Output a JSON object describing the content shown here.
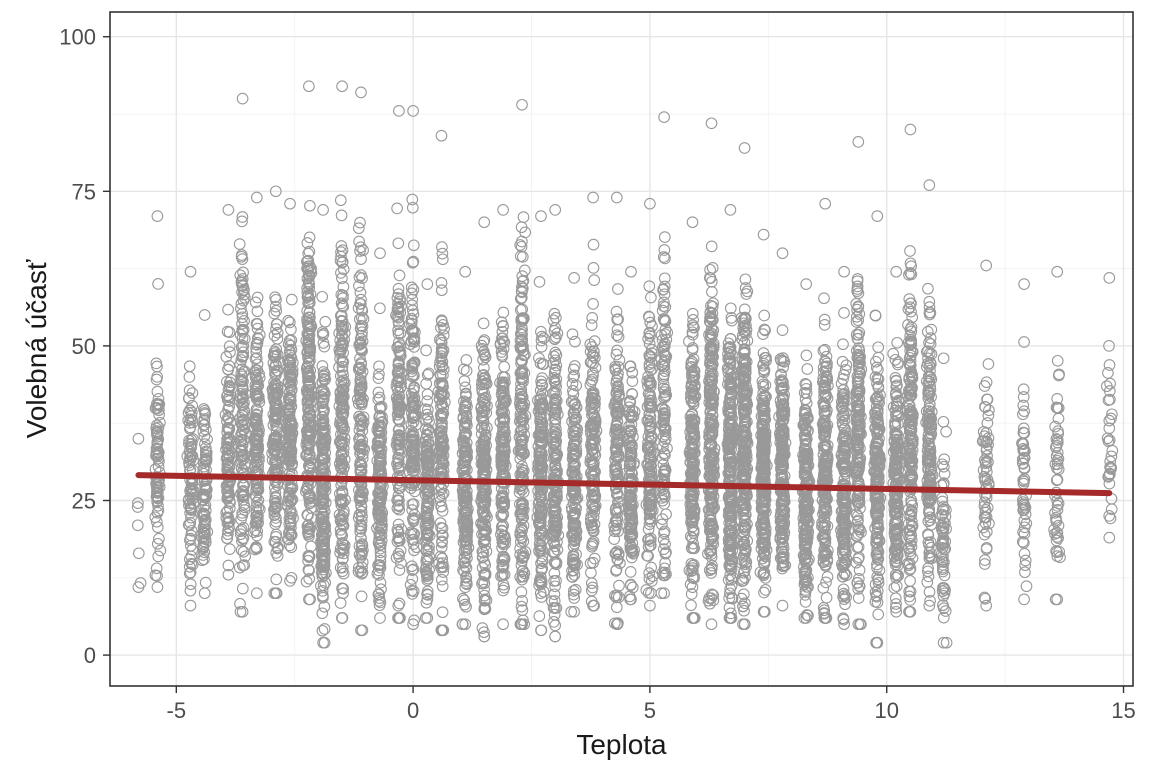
{
  "chart_data": {
    "type": "scatter",
    "title": "",
    "xlabel": "Teplota",
    "ylabel": "Volebná účasť",
    "xlim": [
      -6.4,
      15.2
    ],
    "ylim": [
      -5,
      104
    ],
    "x_ticks": [
      -5,
      0,
      5,
      10,
      15
    ],
    "y_ticks": [
      0,
      25,
      50,
      75,
      100
    ],
    "x_tick_labels": [
      "-5",
      "0",
      "5",
      "10",
      "15"
    ],
    "y_tick_labels": [
      "0",
      "25",
      "50",
      "75",
      "100"
    ],
    "grid": true,
    "legend": "none",
    "point_color": "#999999",
    "line_color": "#a52a2a",
    "regression_line": {
      "x": [
        -5.8,
        14.7
      ],
      "y": [
        29.1,
        26.2
      ]
    },
    "point_clusters": [
      {
        "x": -5.8,
        "y_min": 11,
        "y_max": 35,
        "n": 5
      },
      {
        "x": -5.4,
        "y_min": 11,
        "y_max": 71,
        "n": 80
      },
      {
        "x": -4.7,
        "y_min": 8,
        "y_max": 62,
        "n": 90
      },
      {
        "x": -4.4,
        "y_min": 10,
        "y_max": 55,
        "n": 90
      },
      {
        "x": -3.9,
        "y_min": 13,
        "y_max": 72,
        "n": 110
      },
      {
        "x": -3.6,
        "y_min": 7,
        "y_max": 90,
        "n": 150
      },
      {
        "x": -3.3,
        "y_min": 10,
        "y_max": 74,
        "n": 150
      },
      {
        "x": -2.9,
        "y_min": 10,
        "y_max": 75,
        "n": 170
      },
      {
        "x": -2.6,
        "y_min": 12,
        "y_max": 73,
        "n": 180
      },
      {
        "x": -2.2,
        "y_min": 9,
        "y_max": 92,
        "n": 220
      },
      {
        "x": -1.9,
        "y_min": 2,
        "y_max": 72,
        "n": 220
      },
      {
        "x": -1.5,
        "y_min": 6,
        "y_max": 92,
        "n": 190
      },
      {
        "x": -1.1,
        "y_min": 4,
        "y_max": 91,
        "n": 170
      },
      {
        "x": -0.7,
        "y_min": 6,
        "y_max": 65,
        "n": 150
      },
      {
        "x": -0.3,
        "y_min": 6,
        "y_max": 88,
        "n": 150
      },
      {
        "x": 0.0,
        "y_min": 5,
        "y_max": 88,
        "n": 150
      },
      {
        "x": 0.3,
        "y_min": 6,
        "y_max": 60,
        "n": 140
      },
      {
        "x": 0.6,
        "y_min": 4,
        "y_max": 84,
        "n": 150
      },
      {
        "x": 1.1,
        "y_min": 5,
        "y_max": 62,
        "n": 170
      },
      {
        "x": 1.5,
        "y_min": 3,
        "y_max": 70,
        "n": 190
      },
      {
        "x": 1.9,
        "y_min": 5,
        "y_max": 72,
        "n": 190
      },
      {
        "x": 2.3,
        "y_min": 5,
        "y_max": 89,
        "n": 190
      },
      {
        "x": 2.7,
        "y_min": 4,
        "y_max": 71,
        "n": 180
      },
      {
        "x": 3.0,
        "y_min": 3,
        "y_max": 72,
        "n": 170
      },
      {
        "x": 3.4,
        "y_min": 7,
        "y_max": 61,
        "n": 160
      },
      {
        "x": 3.8,
        "y_min": 8,
        "y_max": 74,
        "n": 150
      },
      {
        "x": 4.3,
        "y_min": 5,
        "y_max": 74,
        "n": 140
      },
      {
        "x": 4.6,
        "y_min": 9,
        "y_max": 62,
        "n": 140
      },
      {
        "x": 5.0,
        "y_min": 8,
        "y_max": 73,
        "n": 150
      },
      {
        "x": 5.3,
        "y_min": 10,
        "y_max": 87,
        "n": 120
      },
      {
        "x": 5.9,
        "y_min": 6,
        "y_max": 70,
        "n": 200
      },
      {
        "x": 6.3,
        "y_min": 5,
        "y_max": 86,
        "n": 250
      },
      {
        "x": 6.7,
        "y_min": 6,
        "y_max": 72,
        "n": 250
      },
      {
        "x": 7.0,
        "y_min": 5,
        "y_max": 82,
        "n": 270
      },
      {
        "x": 7.4,
        "y_min": 7,
        "y_max": 68,
        "n": 250
      },
      {
        "x": 7.8,
        "y_min": 8,
        "y_max": 65,
        "n": 220
      },
      {
        "x": 8.3,
        "y_min": 6,
        "y_max": 60,
        "n": 210
      },
      {
        "x": 8.7,
        "y_min": 6,
        "y_max": 73,
        "n": 210
      },
      {
        "x": 9.1,
        "y_min": 5,
        "y_max": 62,
        "n": 190
      },
      {
        "x": 9.4,
        "y_min": 5,
        "y_max": 83,
        "n": 180
      },
      {
        "x": 9.8,
        "y_min": 2,
        "y_max": 71,
        "n": 190
      },
      {
        "x": 10.2,
        "y_min": 7,
        "y_max": 62,
        "n": 190
      },
      {
        "x": 10.5,
        "y_min": 7,
        "y_max": 85,
        "n": 190
      },
      {
        "x": 10.9,
        "y_min": 8,
        "y_max": 76,
        "n": 170
      },
      {
        "x": 11.2,
        "y_min": 2,
        "y_max": 48,
        "n": 60
      },
      {
        "x": 12.1,
        "y_min": 8,
        "y_max": 63,
        "n": 60
      },
      {
        "x": 12.9,
        "y_min": 9,
        "y_max": 60,
        "n": 50
      },
      {
        "x": 13.6,
        "y_min": 9,
        "y_max": 62,
        "n": 50
      },
      {
        "x": 14.7,
        "y_min": 19,
        "y_max": 61,
        "n": 30
      }
    ]
  }
}
